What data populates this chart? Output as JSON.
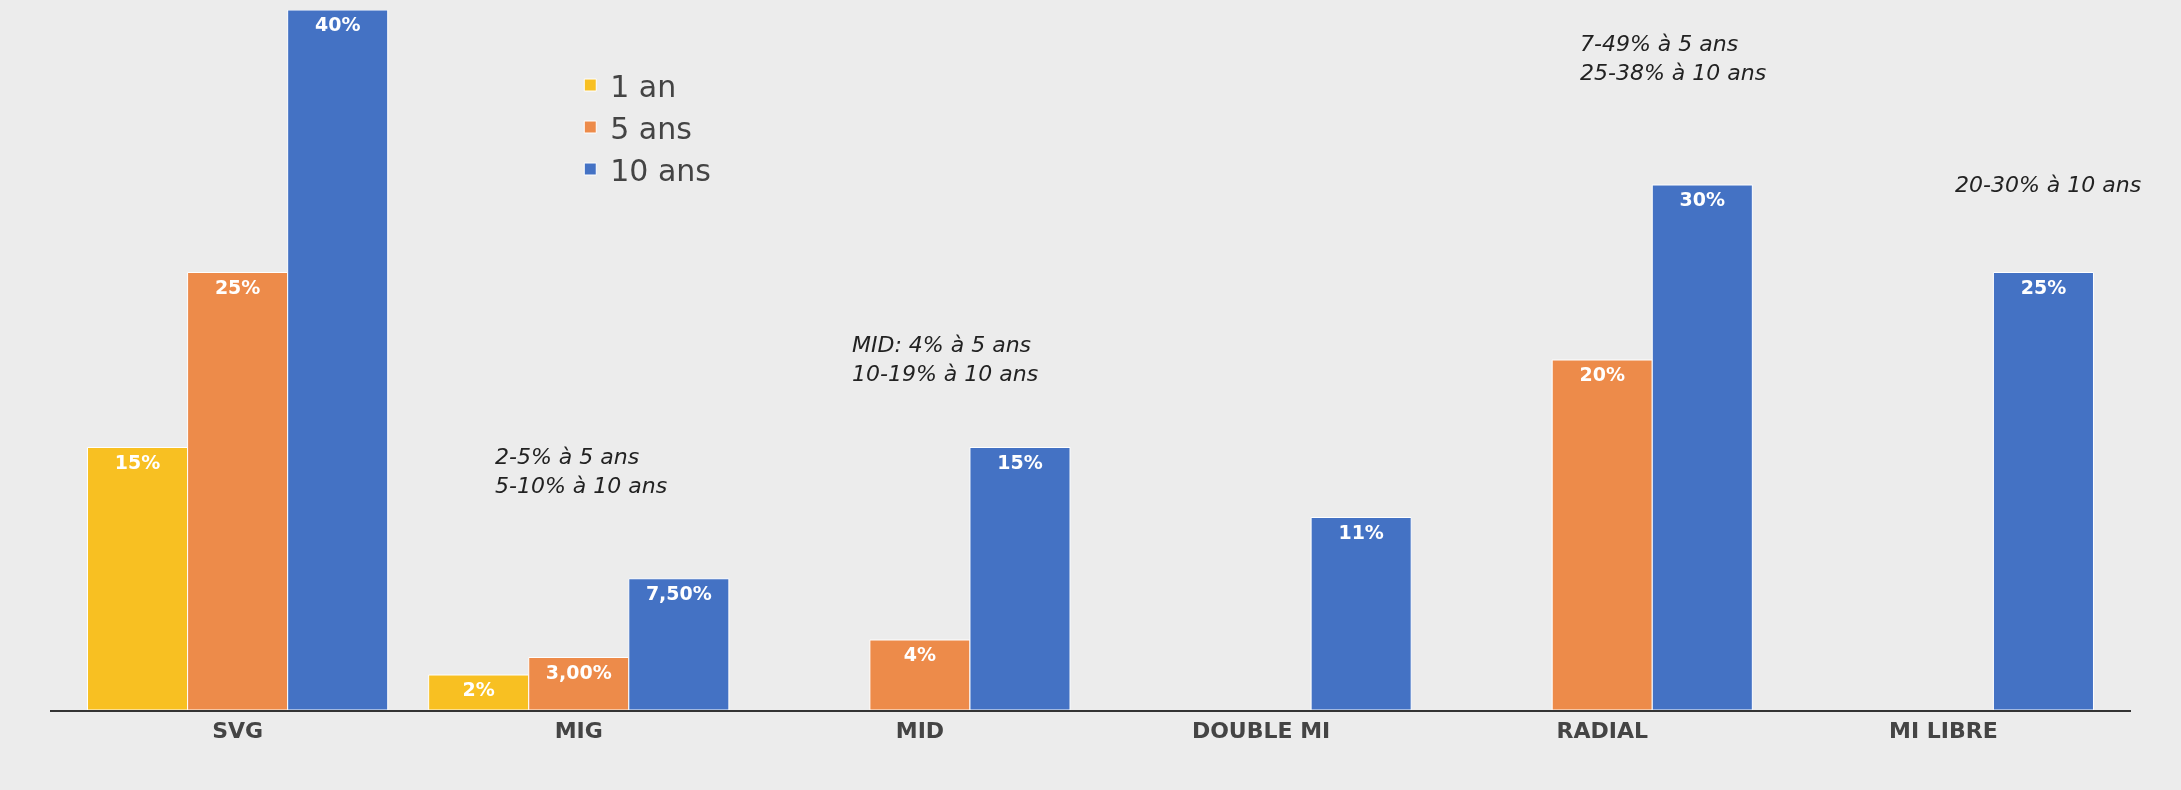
{
  "chart_data": {
    "type": "bar",
    "categories": [
      "SVG",
      "MIG",
      "MID",
      "DOUBLE MI",
      "RADIAL",
      "MI LIBRE"
    ],
    "series": [
      {
        "name": "1 an",
        "color": "#f8c022",
        "values": [
          15,
          2,
          null,
          null,
          null,
          null
        ],
        "value_labels": [
          "15%",
          "2%",
          null,
          null,
          null,
          null
        ]
      },
      {
        "name": "5 ans",
        "color": "#ed8b4a",
        "values": [
          25,
          3,
          4,
          null,
          20,
          null
        ],
        "value_labels": [
          "25%",
          "3,00%",
          "4%",
          null,
          "20%",
          null
        ]
      },
      {
        "name": "10 ans",
        "color": "#4472c4",
        "values": [
          40,
          7.5,
          15,
          11,
          30,
          25
        ],
        "value_labels": [
          "40%",
          "7,50%",
          "15%",
          "11%",
          "30%",
          "25%"
        ]
      }
    ],
    "ylim": [
      0,
      40
    ],
    "annotations": [
      "2-5% à 5 ans\n5-10% à 10 ans",
      "MID: 4% à 5 ans\n10-19% à 10 ans",
      "7-49% à 5 ans\n25-38% à 10 ans",
      "20-30% à 10 ans"
    ],
    "legend": "top left"
  }
}
